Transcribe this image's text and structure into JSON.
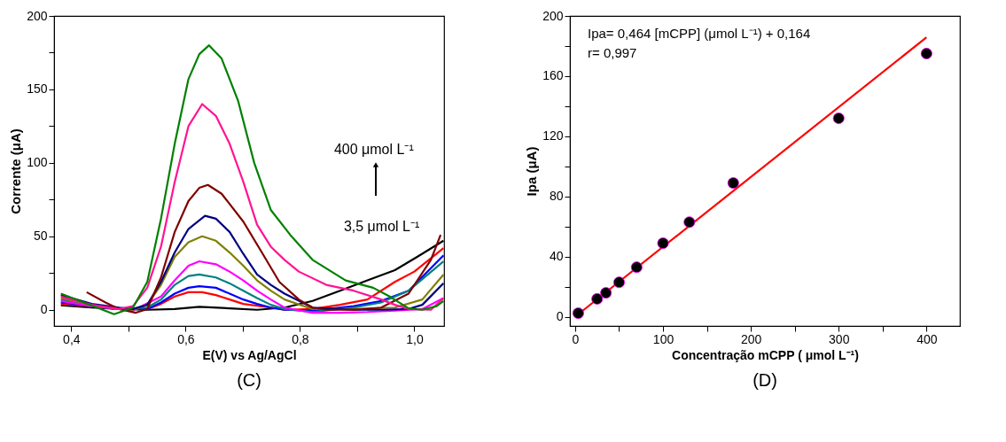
{
  "chart_data": [
    {
      "type": "line",
      "title": "(C)",
      "xlabel": "E(V) vs Ag/AgCl",
      "ylabel": "Corrente (μA)",
      "xlim": [
        0.37,
        1.052
      ],
      "ylim": [
        -11,
        200
      ],
      "xticks": [
        {
          "value": 0.4,
          "label": "0,4"
        },
        {
          "value": 0.5,
          "label": null
        },
        {
          "value": 0.6,
          "label": "0,6"
        },
        {
          "value": 0.7,
          "label": null
        },
        {
          "value": 0.8,
          "label": "0,8"
        },
        {
          "value": 0.9,
          "label": null
        },
        {
          "value": 1.0,
          "label": "1,0"
        }
      ],
      "yticks": [
        0,
        {
          "value": 25,
          "label": null
        },
        50,
        {
          "value": 75,
          "label": null
        },
        100,
        {
          "value": 125,
          "label": null
        },
        150,
        {
          "value": 175,
          "label": null
        },
        200
      ],
      "grid": false,
      "line_style": "solid",
      "annotations": [
        "400 μmol L⁻¹",
        "3,5 μmol L⁻¹"
      ],
      "series": [
        {
          "color": "#000000",
          "x": [
            0.382,
            0.436,
            0.484,
            0.533,
            0.581,
            0.624,
            0.677,
            0.725,
            0.773,
            0.822,
            0.87,
            0.918,
            0.966,
            1.005,
            1.051
          ],
          "values": [
            3,
            1.5,
            0.5,
            0,
            0.5,
            2,
            1,
            0,
            1.5,
            6,
            13,
            20,
            27,
            36,
            47
          ]
        },
        {
          "color": "#ff0000",
          "x": [
            0.382,
            0.436,
            0.484,
            0.533,
            0.557,
            0.581,
            0.605,
            0.629,
            0.653,
            0.677,
            0.701,
            0.749,
            0.773,
            0.822,
            0.87,
            0.918,
            0.966,
            1.0,
            1.051
          ],
          "values": [
            4,
            2.5,
            0.5,
            0.5,
            4,
            9,
            12,
            12,
            10,
            7,
            4,
            1.5,
            0,
            0.5,
            3.4,
            7,
            19,
            26,
            42
          ]
        },
        {
          "color": "#0000ff",
          "x": [
            0.382,
            0.436,
            0.484,
            0.533,
            0.557,
            0.581,
            0.605,
            0.624,
            0.653,
            0.677,
            0.701,
            0.725,
            0.749,
            0.773,
            0.822,
            0.894,
            0.942,
            0.99,
            1.051
          ],
          "values": [
            5,
            2.5,
            0.5,
            0.5,
            5,
            11,
            15,
            16,
            15,
            11,
            7,
            4,
            1.5,
            0,
            -0.5,
            2.5,
            6,
            13,
            37
          ]
        },
        {
          "color": "#008080",
          "x": [
            0.382,
            0.436,
            0.484,
            0.533,
            0.557,
            0.581,
            0.605,
            0.624,
            0.653,
            0.677,
            0.701,
            0.725,
            0.749,
            0.773,
            0.822,
            0.894,
            0.942,
            0.99,
            1.051
          ],
          "values": [
            7,
            2.5,
            0.5,
            1.5,
            7,
            17,
            23,
            24,
            22,
            18,
            13,
            8,
            3.4,
            0.5,
            -1.5,
            1.5,
            5,
            13,
            33
          ]
        },
        {
          "color": "#ff00ff",
          "x": [
            0.382,
            0.436,
            0.484,
            0.508,
            0.557,
            0.581,
            0.605,
            0.624,
            0.653,
            0.677,
            0.701,
            0.725,
            0.749,
            0.773,
            0.822,
            0.87,
            0.918,
            0.966,
            1.014,
            1.051
          ],
          "values": [
            6,
            2.5,
            0.5,
            -0.5,
            9,
            20,
            30,
            33,
            31,
            26,
            20,
            13,
            7,
            1.5,
            -2,
            -2,
            -1.5,
            -0.5,
            0.5,
            8
          ]
        },
        {
          "color": "#808000",
          "x": [
            0.382,
            0.436,
            0.484,
            0.508,
            0.533,
            0.557,
            0.581,
            0.605,
            0.629,
            0.653,
            0.677,
            0.701,
            0.725,
            0.749,
            0.773,
            0.822,
            0.894,
            0.966,
            1.014,
            1.051
          ],
          "values": [
            8,
            3.4,
            0.5,
            0,
            3.4,
            17,
            36,
            46,
            50,
            47,
            39,
            30,
            20,
            13,
            7,
            0.5,
            0.5,
            1.5,
            7,
            24
          ]
        },
        {
          "color": "#000080",
          "x": [
            0.382,
            0.436,
            0.484,
            0.508,
            0.533,
            0.557,
            0.581,
            0.605,
            0.634,
            0.653,
            0.677,
            0.701,
            0.725,
            0.749,
            0.773,
            0.822,
            0.894,
            0.942,
            0.99,
            1.014,
            1.051
          ],
          "values": [
            10,
            4,
            1.5,
            0.5,
            3.4,
            19,
            39,
            55,
            64,
            62,
            53,
            38,
            24,
            17,
            11,
            1.5,
            0,
            0,
            0.5,
            3.4,
            18
          ]
        },
        {
          "color": "#800000",
          "x": [
            0.427,
            0.46,
            0.484,
            0.513,
            0.533,
            0.557,
            0.581,
            0.605,
            0.624,
            0.639,
            0.663,
            0.701,
            0.735,
            0.764,
            0.798,
            0.822,
            0.846,
            0.894,
            0.942,
            0.99,
            1.029,
            1.046
          ],
          "values": [
            12,
            5,
            0.5,
            -2,
            0.5,
            22,
            53,
            74,
            83,
            85,
            79,
            60,
            38,
            19,
            7,
            1.5,
            0,
            0,
            1.5,
            11,
            34,
            51
          ]
        },
        {
          "color": "#ff1493",
          "x": [
            0.382,
            0.436,
            0.484,
            0.508,
            0.533,
            0.557,
            0.581,
            0.605,
            0.629,
            0.653,
            0.677,
            0.701,
            0.725,
            0.749,
            0.773,
            0.798,
            0.846,
            0.894,
            0.942,
            0.966,
            0.99,
            1.029,
            1.051
          ],
          "values": [
            9,
            3.4,
            0.5,
            2.5,
            15,
            43,
            87,
            125,
            140,
            132,
            113,
            87,
            58,
            43,
            34,
            26,
            17,
            13,
            7,
            3.4,
            0.5,
            0,
            8
          ]
        },
        {
          "color": "#008000",
          "x": [
            0.382,
            0.475,
            0.508,
            0.533,
            0.557,
            0.581,
            0.605,
            0.624,
            0.641,
            0.663,
            0.692,
            0.72,
            0.749,
            0.783,
            0.822,
            0.88,
            0.928,
            0.957,
            0.99,
            1.014,
            1.039,
            1.051
          ],
          "values": [
            11,
            -3,
            1.5,
            19,
            62,
            113,
            157,
            174,
            180,
            171,
            142,
            100,
            68,
            51,
            34,
            20,
            15,
            9,
            1,
            0,
            2.5,
            6
          ]
        }
      ]
    },
    {
      "type": "scatter",
      "title": "(D)",
      "xlabel": "Concentração mCPP (  μmol L⁻¹)",
      "ylabel": "Ipa (μA)",
      "xlim": [
        -6,
        438
      ],
      "ylim": [
        -6,
        200
      ],
      "xticks": [
        0,
        {
          "value": 50,
          "label": null
        },
        100,
        {
          "value": 150,
          "label": null
        },
        200,
        {
          "value": 250,
          "label": null
        },
        300,
        {
          "value": 350,
          "label": null
        },
        400
      ],
      "yticks": [
        0,
        {
          "value": 20,
          "label": null
        },
        40,
        {
          "value": 60,
          "label": null
        },
        80,
        {
          "value": 100,
          "label": null
        },
        120,
        {
          "value": 140,
          "label": null
        },
        160,
        {
          "value": 180,
          "label": null
        },
        200
      ],
      "grid": false,
      "annotations": [
        "Ipa= 0,464 [mCPP] (μmol L⁻¹) + 0,164",
        "r= 0,997"
      ],
      "series": [
        {
          "type": "line",
          "line_style": "solid",
          "marker": "none",
          "color": "#ff0000",
          "x": [
            3.5,
            400
          ],
          "values": [
            1.8,
            185.8
          ]
        },
        {
          "type": "scatter",
          "marker": "circle",
          "color": "#000000",
          "x": [
            3.5,
            25,
            35,
            50,
            70,
            100,
            130,
            180,
            300,
            400
          ],
          "values": [
            2.5,
            12,
            16,
            23,
            33,
            49,
            63,
            89,
            132,
            175
          ]
        }
      ]
    }
  ]
}
